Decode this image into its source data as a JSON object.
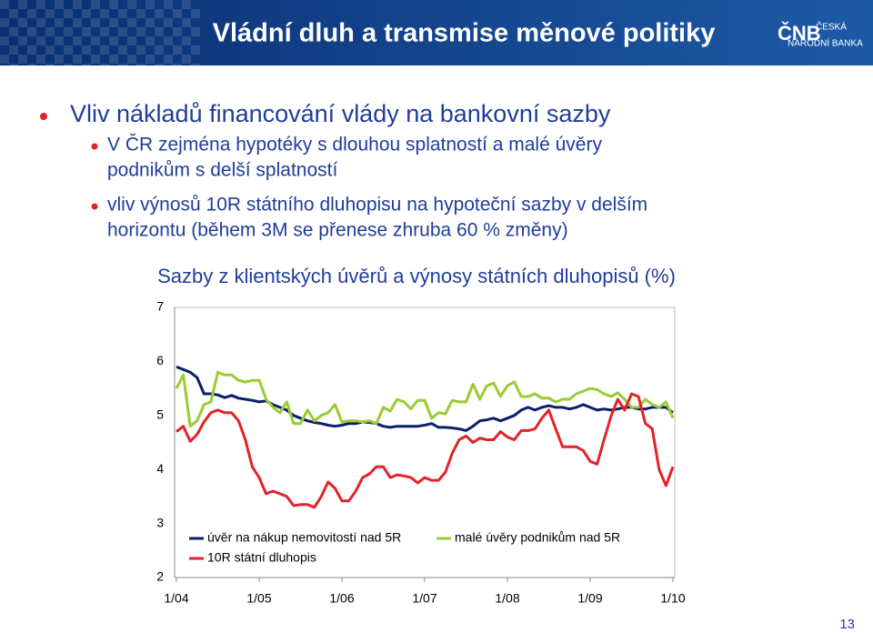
{
  "header": {
    "title": "Vládní dluh a transmise měnové politiky",
    "logo": [
      "ČNB",
      "ČESKÁ",
      "NÁRODNÍ BANKA"
    ]
  },
  "bullets": [
    {
      "text": "Vliv nákladů financování vlády na bankovní sazby",
      "sub": [
        [
          "V ČR zejména hypotéky s dlouhou splatností a malé úvěry",
          "podnikům s delší splatností"
        ],
        [
          "vliv výnosů 10R státního dluhopisu na hypoteční sazby v delším",
          "horizontu (během 3M se přenese zhruba 60 % změny)"
        ]
      ]
    }
  ],
  "page_number": "13",
  "chart_data": {
    "type": "line",
    "title": "Sazby z klientských úvěrů a výnosy státních dluhopisů (%)",
    "categories": [
      "1/04",
      null,
      null,
      null,
      null,
      null,
      null,
      null,
      null,
      null,
      null,
      null,
      "1/05",
      null,
      null,
      null,
      null,
      null,
      null,
      null,
      null,
      null,
      null,
      null,
      "1/06",
      null,
      null,
      null,
      null,
      null,
      null,
      null,
      null,
      null,
      null,
      null,
      "1/07",
      null,
      null,
      null,
      null,
      null,
      null,
      null,
      null,
      null,
      null,
      null,
      "1/08",
      null,
      null,
      null,
      null,
      null,
      null,
      null,
      null,
      null,
      null,
      null,
      "1/09",
      null,
      null,
      null,
      null,
      null,
      null,
      null,
      null,
      null,
      null,
      null,
      "1/10"
    ],
    "series": [
      {
        "name": "úvěr na nákup nemovitostí nad 5R",
        "color": "#0b1f6b",
        "values": [
          5.9,
          5.85,
          5.8,
          5.7,
          5.4,
          5.4,
          5.38,
          5.33,
          5.37,
          5.32,
          5.3,
          5.28,
          5.25,
          5.27,
          5.2,
          5.15,
          5.1,
          5.0,
          4.95,
          4.9,
          4.87,
          4.85,
          4.82,
          4.8,
          4.82,
          4.85,
          4.85,
          4.88,
          4.87,
          4.85,
          4.8,
          4.78,
          4.8,
          4.8,
          4.8,
          4.8,
          4.82,
          4.85,
          4.78,
          4.78,
          4.77,
          4.75,
          4.72,
          4.8,
          4.9,
          4.92,
          4.95,
          4.9,
          4.95,
          5.0,
          5.1,
          5.15,
          5.1,
          5.15,
          5.18,
          5.15,
          5.15,
          5.12,
          5.15,
          5.2,
          5.15,
          5.1,
          5.12,
          5.1,
          5.12,
          5.15,
          5.15,
          5.12,
          5.12,
          5.15,
          5.15,
          5.15,
          5.05
        ]
      },
      {
        "name": "malé úvěry podnikům nad 5R",
        "color": "#99cc33",
        "values": [
          5.5,
          5.75,
          4.8,
          4.9,
          5.2,
          5.25,
          5.8,
          5.75,
          5.75,
          5.65,
          5.62,
          5.65,
          5.65,
          5.3,
          5.15,
          5.05,
          5.25,
          4.85,
          4.85,
          5.1,
          4.9,
          5.0,
          5.05,
          5.2,
          4.88,
          4.9,
          4.9,
          4.88,
          4.9,
          4.85,
          5.15,
          5.08,
          5.3,
          5.25,
          5.12,
          5.28,
          5.28,
          4.95,
          5.05,
          5.03,
          5.28,
          5.25,
          5.25,
          5.58,
          5.3,
          5.55,
          5.6,
          5.35,
          5.55,
          5.62,
          5.35,
          5.35,
          5.4,
          5.32,
          5.32,
          5.25,
          5.3,
          5.3,
          5.4,
          5.45,
          5.5,
          5.48,
          5.4,
          5.35,
          5.42,
          5.3,
          5.15,
          5.15,
          5.3,
          5.2,
          5.15,
          5.25,
          4.95
        ]
      },
      {
        "name": "10R státní dluhopis",
        "color": "#e3222a",
        "values": [
          4.7,
          4.8,
          4.52,
          4.65,
          4.88,
          5.05,
          5.1,
          5.05,
          5.05,
          4.9,
          4.55,
          4.05,
          3.85,
          3.55,
          3.6,
          3.55,
          3.5,
          3.33,
          3.35,
          3.35,
          3.3,
          3.5,
          3.77,
          3.65,
          3.42,
          3.42,
          3.6,
          3.85,
          3.92,
          4.05,
          4.05,
          3.85,
          3.9,
          3.88,
          3.85,
          3.75,
          3.85,
          3.8,
          3.8,
          3.95,
          4.3,
          4.55,
          4.62,
          4.5,
          4.58,
          4.55,
          4.55,
          4.7,
          4.6,
          4.55,
          4.72,
          4.72,
          4.75,
          4.95,
          5.1,
          4.75,
          4.42,
          4.42,
          4.42,
          4.35,
          4.15,
          4.1,
          4.55,
          4.98,
          5.3,
          5.1,
          5.4,
          5.35,
          4.85,
          4.75,
          4.0,
          3.7,
          4.05
        ]
      }
    ],
    "ylim": [
      2,
      7
    ],
    "yticks": [
      2,
      3,
      4,
      5,
      6,
      7
    ],
    "grid": false,
    "legend": "lower left"
  }
}
